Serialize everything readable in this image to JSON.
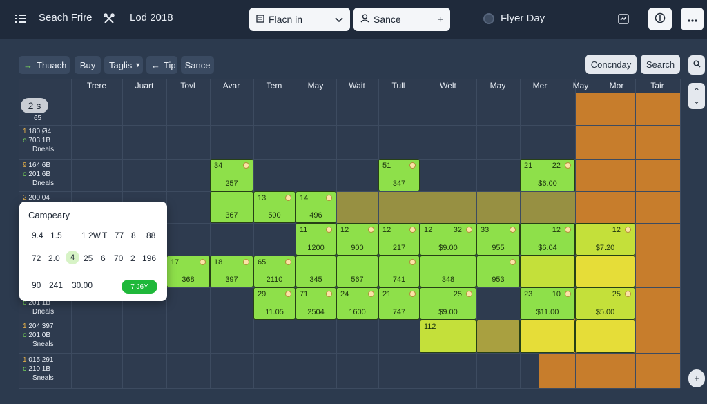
{
  "topbar": {
    "title": "Seach Frire",
    "subtitle": "Lod 2018",
    "field1": {
      "label": "Flacn in",
      "lead_icon": "form-icon",
      "trail_icon": "chevron-down-icon"
    },
    "field2": {
      "label": "Sance",
      "lead_icon": "user-icon",
      "trail_icon": "plus-icon"
    },
    "right_label": "Flyer Day",
    "btn1_icon": "info-icon",
    "btn2_icon": "more-icon"
  },
  "toolbar": {
    "chips": [
      "Thuach",
      "Buy",
      "Taglis",
      "Tip",
      "Sance"
    ],
    "right_buttons": [
      "Concnday",
      "Search"
    ]
  },
  "grid": {
    "columns": [
      "Trere",
      "Juart",
      "Tovl",
      "Avar",
      "Tem",
      "May",
      "Wait",
      "Tull",
      "Welt",
      "May",
      "Mer",
      "May",
      "Mor",
      "Tair"
    ],
    "first_row": {
      "badge": "2 s",
      "sub": "65"
    },
    "row_labels": [
      {
        "l1": "1 180 Ø4",
        "l2": "703 1B",
        "l3": "Dneals"
      },
      {
        "l1": "9 164 6B",
        "l2": "201 6B",
        "l3": "Dneals"
      },
      {
        "l1": "2 200 04",
        "l2": "",
        "l3": ""
      },
      {
        "l1": "",
        "l2": "201 1B",
        "l3": "Dneals"
      },
      {
        "l1": "1 204 397",
        "l2": "201 0B",
        "l3": "Sneals"
      },
      {
        "l1": "1 015 291",
        "l2": "210 1B",
        "l3": "Sneals"
      }
    ],
    "cells": [
      {
        "a": "34",
        "b": "",
        "v": "257",
        "dot": true
      },
      {
        "a": "51",
        "b": "",
        "v": "347",
        "dot": true
      },
      {
        "a": "21",
        "b": "22",
        "v": "$6.00",
        "dot": true
      },
      {
        "a": "13",
        "b": "",
        "v": "500",
        "dot": true
      },
      {
        "a": "14",
        "b": "",
        "v": "496",
        "dot": true
      },
      {
        "a": "",
        "b": "",
        "v": "367",
        "dot": false
      },
      {
        "a": "11",
        "b": "",
        "v": "1200",
        "dot": true
      },
      {
        "a": "12",
        "b": "",
        "v": "900",
        "dot": true
      },
      {
        "a": "12",
        "b": "",
        "v": "217",
        "dot": true
      },
      {
        "a": "12",
        "b": "32",
        "v": "$9.00",
        "dot": true
      },
      {
        "a": "33",
        "b": "",
        "v": "955",
        "dot": true
      },
      {
        "a": "",
        "b": "12",
        "v": "$6.04",
        "dot": true
      },
      {
        "a": "",
        "b": "12",
        "v": "$7.20",
        "dot": true
      },
      {
        "a": "17",
        "b": "",
        "v": "368",
        "dot": true
      },
      {
        "a": "18",
        "b": "",
        "v": "397",
        "dot": true
      },
      {
        "a": "65",
        "b": "",
        "v": "2110",
        "dot": true
      },
      {
        "a": "",
        "b": "",
        "v": "345",
        "dot": false
      },
      {
        "a": "",
        "b": "",
        "v": "567",
        "dot": false
      },
      {
        "a": "",
        "b": "",
        "v": "741",
        "dot": true
      },
      {
        "a": "",
        "b": "",
        "v": "348",
        "dot": false
      },
      {
        "a": "",
        "b": "",
        "v": "953",
        "dot": true
      },
      {
        "a": "29",
        "b": "",
        "v": "11.05",
        "dot": true
      },
      {
        "a": "71",
        "b": "",
        "v": "2504",
        "dot": true
      },
      {
        "a": "24",
        "b": "",
        "v": "1600",
        "dot": true
      },
      {
        "a": "21",
        "b": "",
        "v": "747",
        "dot": true
      },
      {
        "a": "",
        "b": "25",
        "v": "$9.00",
        "dot": true
      },
      {
        "a": "23",
        "b": "10",
        "v": "$11.00",
        "dot": true
      },
      {
        "a": "",
        "b": "25",
        "v": "$5.00",
        "dot": true
      },
      {
        "a": "112",
        "b": "",
        "v": "",
        "dot": false
      }
    ]
  },
  "popup": {
    "title": "Campeary",
    "row1": [
      "9.4",
      "1.5",
      "1 2W",
      "T",
      "77",
      "8",
      "88"
    ],
    "row2": [
      "72",
      "2.0",
      "4",
      "25",
      "6",
      "70",
      "2",
      "196"
    ],
    "row3": [
      "90",
      "241",
      "30.00"
    ],
    "button": "7 J6Y"
  },
  "colors": {
    "green": "#8ee04a",
    "lime": "#c4e03a",
    "yellow": "#e6dd38",
    "olive": "#a9a040",
    "orange": "#c77d2c"
  }
}
